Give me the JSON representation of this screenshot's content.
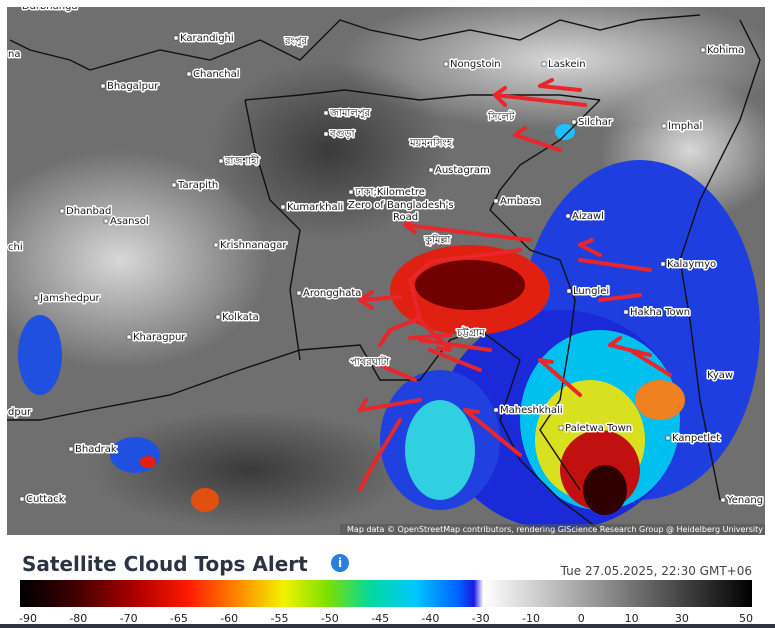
{
  "map": {
    "labels": [
      "Darbhanga",
      "Karandighi",
      "রংপুর",
      "Chanchal",
      "Bhagalpur",
      "Nongstoin",
      "Laskein",
      "Kohima",
      "জামালপুর",
      "সিলেট",
      "Silchar",
      "Imphal",
      "বগুড়া",
      "ময়মনসিংহ",
      "রাজশাহী",
      "Austagram",
      "Tarapith",
      "ঢাকা;Kilometre",
      "Zero of Bangladesh's",
      "Road",
      "Kumarkhali",
      "Dhanbad",
      "Asansol",
      "Ambasa",
      "Aizawl",
      "Krishnanagar",
      "কুমিল্লা",
      "Kalaymyo",
      "Lunglei",
      "Arongghata",
      "Jamshedpur",
      "Hakha Town",
      "Kolkata",
      "চট্টগ্রাম",
      "Kharagpur",
      "পাথরঘাটা",
      "Kyaw",
      "Maheshkhali",
      "Paletwa Town",
      "Kanpetlet",
      "Bhadrak",
      "Cuttack",
      "Yenang",
      "na",
      "chi",
      "dpur"
    ],
    "attribution": "Map data © OpenStreetMap contributors, rendering GIScience Research Group @ Heidelberg University"
  },
  "legend": {
    "title": "Satellite Cloud Tops Alert",
    "timestamp": "Tue 27.05.2025, 22:30 GMT+06",
    "ticks": [
      -90,
      -80,
      -70,
      -65,
      -60,
      -55,
      -50,
      -45,
      -40,
      -30,
      -10,
      0,
      10,
      30,
      50
    ]
  }
}
